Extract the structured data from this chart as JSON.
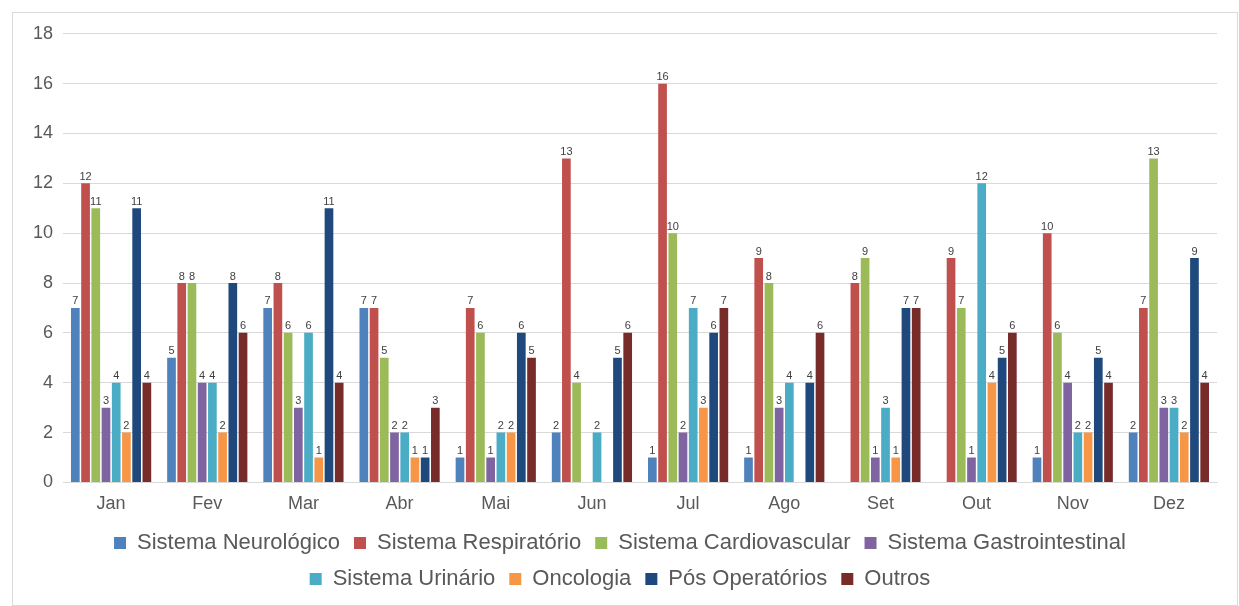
{
  "chart_data": {
    "type": "bar",
    "categories": [
      "Jan",
      "Fev",
      "Mar",
      "Abr",
      "Mai",
      "Jun",
      "Jul",
      "Ago",
      "Set",
      "Out",
      "Nov",
      "Dez"
    ],
    "series": [
      {
        "name": "Sistema Neurológico",
        "color": "#4f81bd",
        "values": [
          7,
          5,
          7,
          7,
          1,
          2,
          1,
          1,
          null,
          null,
          1,
          2
        ]
      },
      {
        "name": "Sistema Respiratório",
        "color": "#c0504d",
        "values": [
          12,
          8,
          8,
          7,
          7,
          13,
          16,
          9,
          8,
          9,
          10,
          7
        ]
      },
      {
        "name": "Sistema Cardiovascular",
        "color": "#9bbb59",
        "values": [
          11,
          8,
          6,
          5,
          6,
          4,
          10,
          8,
          9,
          7,
          6,
          13
        ]
      },
      {
        "name": "Sistema Gastrointestinal",
        "color": "#8064a2",
        "values": [
          3,
          4,
          3,
          2,
          1,
          null,
          2,
          3,
          1,
          1,
          4,
          3
        ]
      },
      {
        "name": "Sistema Urinário",
        "color": "#4bacc6",
        "values": [
          4,
          4,
          6,
          2,
          2,
          2,
          7,
          4,
          3,
          12,
          2,
          3
        ]
      },
      {
        "name": "Oncologia",
        "color": "#f79646",
        "values": [
          2,
          2,
          1,
          1,
          2,
          null,
          3,
          null,
          1,
          4,
          2,
          2
        ]
      },
      {
        "name": "Pós Operatórios",
        "color": "#1f497d",
        "values": [
          11,
          8,
          11,
          1,
          6,
          5,
          6,
          4,
          7,
          5,
          5,
          9
        ]
      },
      {
        "name": "Outros",
        "color": "#772c2a",
        "values": [
          4,
          6,
          4,
          3,
          5,
          6,
          7,
          6,
          7,
          6,
          4,
          4
        ]
      }
    ],
    "ylim": [
      0,
      18
    ],
    "yticks": [
      0,
      2,
      4,
      6,
      8,
      10,
      12,
      14,
      16,
      18
    ],
    "grid": "y",
    "legend": "bottom",
    "data_labels": true
  }
}
